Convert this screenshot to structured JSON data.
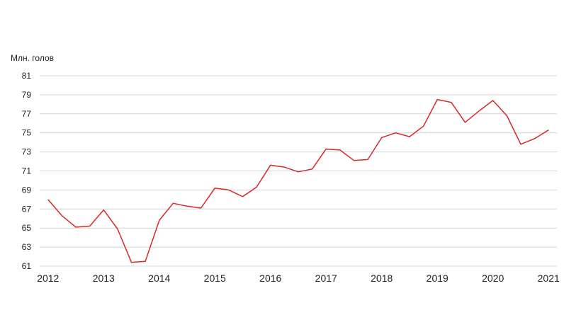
{
  "chart_data": {
    "type": "line",
    "title": "",
    "ylabel": "Млн. голов",
    "xlabel": "",
    "ylim": [
      61,
      81
    ],
    "yticks": [
      61,
      63,
      65,
      67,
      69,
      71,
      73,
      75,
      77,
      79,
      81
    ],
    "xticks": [
      "2012",
      "2013",
      "2014",
      "2015",
      "2016",
      "2017",
      "2018",
      "2019",
      "2020",
      "2021"
    ],
    "grid": "horizontal",
    "series": [
      {
        "color": "#d9262a",
        "x": [
          2012.0,
          2012.25,
          2012.5,
          2012.75,
          2013.0,
          2013.25,
          2013.5,
          2013.75,
          2014.0,
          2014.25,
          2014.5,
          2014.75,
          2015.0,
          2015.25,
          2015.5,
          2015.75,
          2016.0,
          2016.25,
          2016.5,
          2016.75,
          2017.0,
          2017.25,
          2017.5,
          2017.75,
          2018.0,
          2018.25,
          2018.5,
          2018.75,
          2019.0,
          2019.25,
          2019.5,
          2019.75,
          2020.0,
          2020.25,
          2020.5,
          2020.75,
          2021.0
        ],
        "y": [
          68.0,
          66.3,
          65.1,
          65.2,
          66.9,
          64.9,
          61.4,
          61.5,
          65.8,
          67.6,
          67.3,
          67.1,
          69.2,
          69.0,
          68.3,
          69.3,
          71.6,
          71.4,
          70.9,
          71.2,
          73.3,
          73.2,
          72.1,
          72.2,
          74.5,
          75.0,
          74.6,
          75.7,
          78.5,
          78.2,
          76.1,
          77.3,
          78.4,
          76.8,
          73.8,
          74.4,
          75.3
        ]
      }
    ]
  }
}
